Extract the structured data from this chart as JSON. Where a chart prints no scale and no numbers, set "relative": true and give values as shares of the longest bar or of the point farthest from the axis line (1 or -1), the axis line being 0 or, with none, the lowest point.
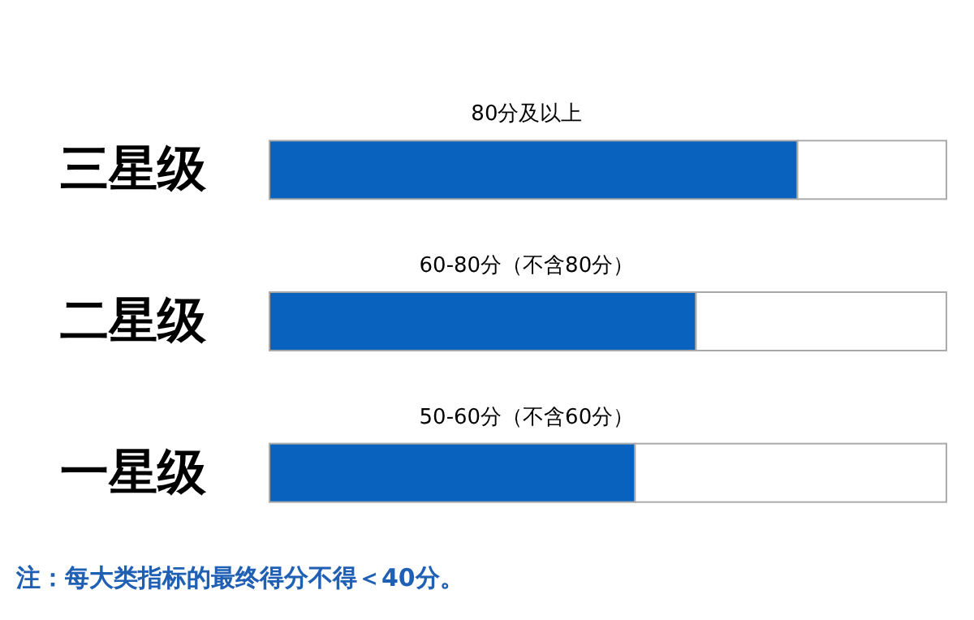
{
  "chart_data": {
    "type": "bar",
    "orientation": "horizontal",
    "stacked": true,
    "relative": true,
    "categories": [
      "三星级",
      "二星级",
      "一星级"
    ],
    "series": [
      {
        "color": "#0a62bf",
        "values": [
          0.78,
          0.63,
          0.54
        ]
      },
      {
        "color": "#ffffff",
        "values": [
          0.22,
          0.37,
          0.46
        ]
      }
    ],
    "annotations": [
      "80分及以上",
      "60-80分（不含80分）",
      "50-60分（不含60分）",
      "注：每大类指标的最终得分不得＜40分。"
    ]
  }
}
